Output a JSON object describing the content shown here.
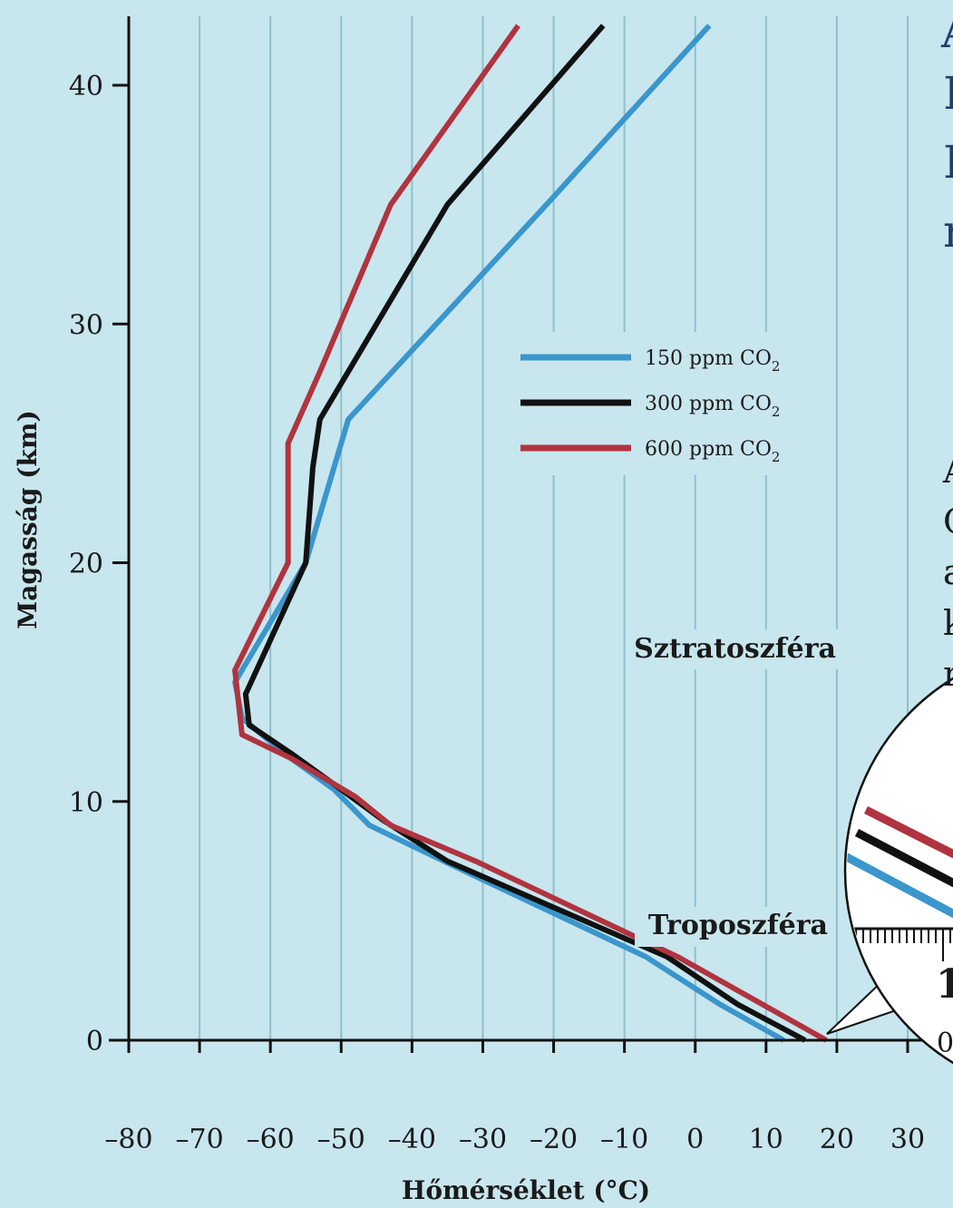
{
  "chart_data": {
    "type": "line",
    "title": "",
    "xlabel": "Hőmérséklet (°C)",
    "ylabel": "Magasság (km)",
    "xlim": [
      -80,
      30
    ],
    "ylim": [
      0,
      42.5
    ],
    "x_ticks": [
      -80,
      -70,
      -60,
      -50,
      -40,
      -30,
      -20,
      -10,
      0,
      10,
      20,
      30
    ],
    "x_tick_labels": [
      "–80",
      "–70",
      "–60",
      "–50",
      "–40",
      "–30",
      "–20",
      "–10",
      "0",
      "10",
      "20",
      "30"
    ],
    "y_ticks": [
      0,
      10,
      20,
      30,
      40
    ],
    "y_tick_labels": [
      "0",
      "10",
      "20",
      "30",
      "40"
    ],
    "grid": "vertical",
    "legend_position": "center-right",
    "annotations": [
      "Sztratoszféra",
      "Troposzféra"
    ],
    "series": [
      {
        "name": "150 ppm CO2",
        "name_main": "150 ppm CO",
        "name_sub": "2",
        "color": "#3a96cc",
        "x": [
          12.5,
          3.5,
          -7,
          -32,
          -46,
          -51,
          -58,
          -64,
          -65,
          -55,
          -49,
          -21,
          2
        ],
        "y": [
          0,
          1.5,
          3.5,
          7,
          9,
          10.5,
          12,
          13.5,
          15,
          20,
          26,
          35,
          42.5
        ]
      },
      {
        "name": "300 ppm CO2",
        "name_main": "300 ppm CO",
        "name_sub": "2",
        "color": "#111111",
        "x": [
          15.5,
          6,
          -4,
          -35,
          -44,
          -50,
          -57,
          -63,
          -63.5,
          -55,
          -54,
          -53,
          -35,
          -13
        ],
        "y": [
          0,
          1.5,
          3.5,
          7.5,
          9.2,
          10.5,
          12,
          13.2,
          14.5,
          20,
          24,
          26,
          35,
          42.5
        ]
      },
      {
        "name": "600 ppm CO2",
        "name_main": "600 ppm CO",
        "name_sub": "2",
        "color": "#b0343f",
        "x": [
          18.5,
          9.5,
          -2.5,
          -31,
          -43,
          -48,
          -57,
          -64,
          -65,
          -57.5,
          -57.5,
          -53,
          -43,
          -25
        ],
        "y": [
          0,
          1.5,
          3.5,
          7.5,
          9,
          10.2,
          11.8,
          12.8,
          15.5,
          20,
          25,
          28,
          35,
          42.5
        ]
      }
    ]
  },
  "cropped_text": {
    "title_lines": [
      "A",
      "I",
      "I",
      "r"
    ],
    "body_lines": [
      "A",
      "C",
      "a",
      "k",
      "r"
    ],
    "inset_axis_label": "1",
    "inset_zero": "0"
  }
}
